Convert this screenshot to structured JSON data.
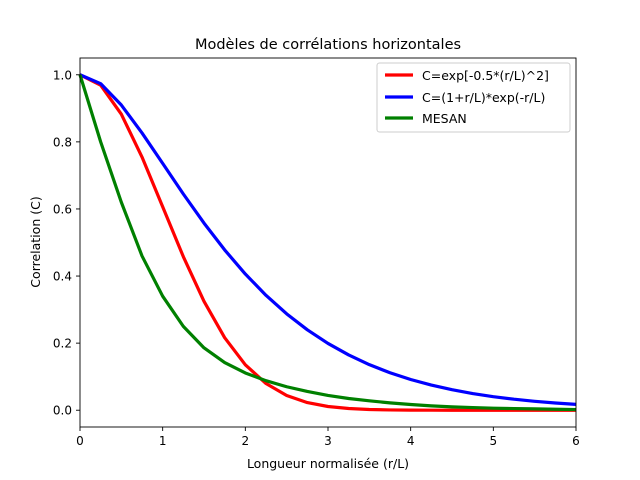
{
  "chart_data": {
    "type": "line",
    "title": "Modèles de corrélations horizontales",
    "xlabel": "Longueur normalisée (r/L)",
    "ylabel": "Correlation (C)",
    "xlim": [
      0,
      6
    ],
    "ylim": [
      -0.05,
      1.05
    ],
    "x_ticks": [
      0,
      1,
      2,
      3,
      4,
      5,
      6
    ],
    "x_tick_labels": [
      "0",
      "1",
      "2",
      "3",
      "4",
      "5",
      "6"
    ],
    "y_ticks": [
      0.0,
      0.2,
      0.4,
      0.6,
      0.8,
      1.0
    ],
    "y_tick_labels": [
      "0.0",
      "0.2",
      "0.4",
      "0.6",
      "0.8",
      "1.0"
    ],
    "grid": false,
    "legend_position": "upper right",
    "x": [
      0,
      0.25,
      0.5,
      0.75,
      1.0,
      1.25,
      1.5,
      1.75,
      2.0,
      2.25,
      2.5,
      2.75,
      3.0,
      3.25,
      3.5,
      3.75,
      4.0,
      4.25,
      4.5,
      4.75,
      5.0,
      5.25,
      5.5,
      5.75,
      6.0
    ],
    "series": [
      {
        "name": "C=exp[-0.5*(r/L)^2]",
        "color": "#ff0000",
        "values": [
          1.0,
          0.969,
          0.8825,
          0.7548,
          0.6065,
          0.4578,
          0.3247,
          0.2163,
          0.1353,
          0.0796,
          0.0439,
          0.0228,
          0.0111,
          0.0051,
          0.0022,
          0.0009,
          0.0003,
          0.0001,
          0.0,
          0.0,
          0.0,
          0.0,
          0.0,
          0.0,
          0.0
        ]
      },
      {
        "name": "C=(1+r/L)*exp(-r/L)",
        "color": "#0000ff",
        "values": [
          1.0,
          0.9735,
          0.9098,
          0.8266,
          0.7358,
          0.6446,
          0.5578,
          0.4779,
          0.406,
          0.3425,
          0.2873,
          0.2397,
          0.1991,
          0.1648,
          0.1359,
          0.1117,
          0.0916,
          0.0749,
          0.0611,
          0.0497,
          0.0404,
          0.0328,
          0.0266,
          0.0215,
          0.0174
        ]
      },
      {
        "name": "MESAN",
        "color": "#008000",
        "values": [
          1.0,
          0.8,
          0.62,
          0.46,
          0.34,
          0.25,
          0.186,
          0.142,
          0.111,
          0.088,
          0.07,
          0.056,
          0.044,
          0.035,
          0.028,
          0.022,
          0.017,
          0.013,
          0.01,
          0.008,
          0.006,
          0.005,
          0.004,
          0.003,
          0.002
        ]
      }
    ]
  }
}
